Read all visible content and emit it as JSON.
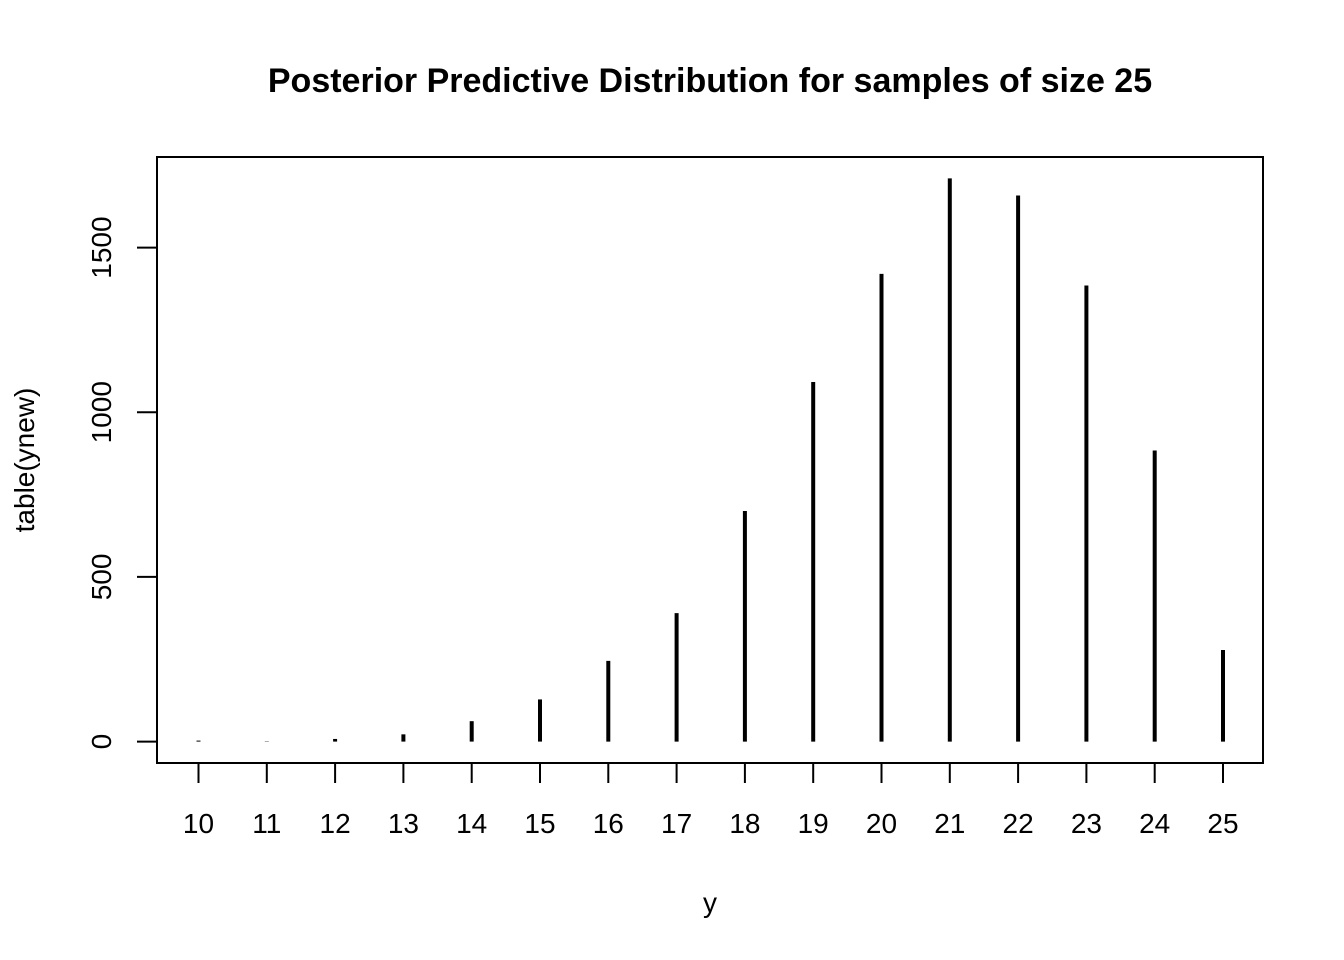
{
  "chart_data": {
    "type": "bar",
    "title": "Posterior Predictive Distribution for samples of size 25",
    "xlabel": "y",
    "ylabel": "table(ynew)",
    "categories": [
      "10",
      "11",
      "12",
      "13",
      "14",
      "15",
      "16",
      "17",
      "18",
      "19",
      "20",
      "21",
      "22",
      "23",
      "24",
      "25"
    ],
    "values": [
      3,
      1,
      8,
      22,
      62,
      128,
      245,
      390,
      700,
      1092,
      1420,
      1710,
      1658,
      1385,
      884,
      278
    ],
    "y_ticks": [
      0,
      500,
      1000,
      1500
    ],
    "ylim": [
      -65,
      1775
    ],
    "grid": false,
    "legend": "none"
  }
}
